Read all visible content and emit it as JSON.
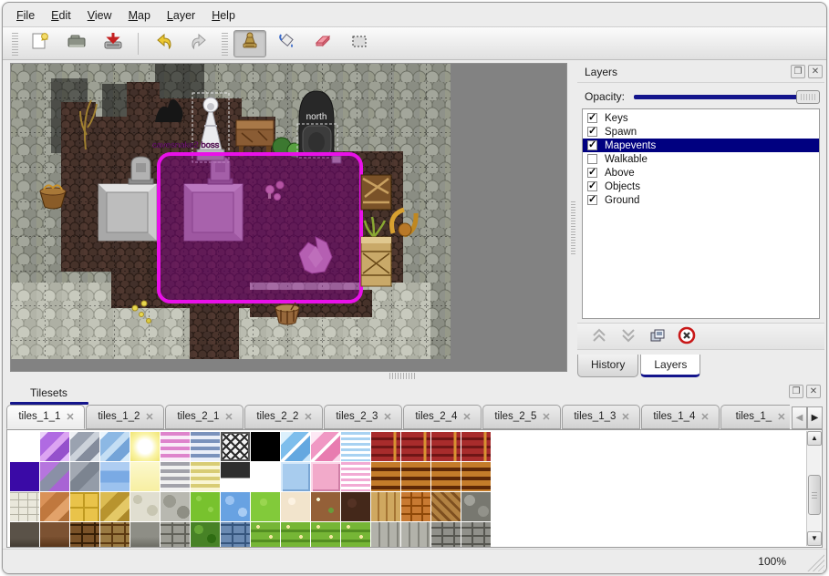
{
  "menu": {
    "items": [
      {
        "label": "File"
      },
      {
        "label": "Edit"
      },
      {
        "label": "View"
      },
      {
        "label": "Map"
      },
      {
        "label": "Layer"
      },
      {
        "label": "Help"
      }
    ]
  },
  "toolbar": {
    "items": [
      {
        "type": "grip"
      },
      {
        "type": "button",
        "icon": "new-file-icon",
        "name": "new-button",
        "active": false
      },
      {
        "type": "button",
        "icon": "open-icon",
        "name": "open-button",
        "active": false
      },
      {
        "type": "button",
        "icon": "save-icon",
        "name": "save-button",
        "active": false
      },
      {
        "type": "sep"
      },
      {
        "type": "button",
        "icon": "undo-icon",
        "name": "undo-button",
        "active": false
      },
      {
        "type": "button",
        "icon": "redo-icon",
        "name": "redo-button",
        "active": false
      },
      {
        "type": "grip"
      },
      {
        "type": "button",
        "icon": "stamp-tool-icon",
        "name": "stamp-tool-button",
        "active": true
      },
      {
        "type": "button",
        "icon": "fill-tool-icon",
        "name": "fill-tool-button",
        "active": false
      },
      {
        "type": "button",
        "icon": "eraser-tool-icon",
        "name": "eraser-tool-button",
        "active": false
      },
      {
        "type": "button",
        "icon": "select-tool-icon",
        "name": "select-tool-button",
        "active": false
      }
    ]
  },
  "map": {
    "event_labels": {
      "boss": "cavesnake2 boss",
      "north": "north"
    }
  },
  "layers_panel": {
    "title": "Layers",
    "opacity_label": "Opacity:",
    "opacity_value_pct": 100,
    "layers": [
      {
        "label": "Keys",
        "checked": true,
        "selected": false
      },
      {
        "label": "Spawn",
        "checked": true,
        "selected": false
      },
      {
        "label": "Mapevents",
        "checked": true,
        "selected": true
      },
      {
        "label": "Walkable",
        "checked": false,
        "selected": false
      },
      {
        "label": "Above",
        "checked": true,
        "selected": false
      },
      {
        "label": "Objects",
        "checked": true,
        "selected": false
      },
      {
        "label": "Ground",
        "checked": true,
        "selected": false
      }
    ],
    "action_buttons": [
      {
        "icon": "move-layer-up-icon",
        "name": "move-layer-up-button",
        "disabled": true
      },
      {
        "icon": "move-layer-down-icon",
        "name": "move-layer-down-button",
        "disabled": true
      },
      {
        "icon": "duplicate-layer-icon",
        "name": "duplicate-layer-button",
        "disabled": false
      },
      {
        "icon": "delete-layer-icon",
        "name": "delete-layer-button",
        "disabled": false
      }
    ],
    "dock_tabs": [
      {
        "label": "History",
        "active": false
      },
      {
        "label": "Layers",
        "active": true
      }
    ]
  },
  "tilesets_panel": {
    "title": "Tilesets",
    "tabs": [
      {
        "label": "tiles_1_1",
        "active": true
      },
      {
        "label": "tiles_1_2",
        "active": false
      },
      {
        "label": "tiles_2_1",
        "active": false
      },
      {
        "label": "tiles_2_2",
        "active": false
      },
      {
        "label": "tiles_2_3",
        "active": false
      },
      {
        "label": "tiles_2_4",
        "active": false
      },
      {
        "label": "tiles_2_5",
        "active": false
      },
      {
        "label": "tiles_1_3",
        "active": false
      },
      {
        "label": "tiles_1_4",
        "active": false
      },
      {
        "label": "tiles_1_",
        "active": false
      }
    ],
    "scroll_left_label": "◀",
    "scroll_right_label": "▶",
    "tile_rows": [
      [
        "empty",
        "crysPurple",
        "crysGray",
        "crysBlue",
        "glowYellow",
        "stripePink",
        "stripeBlue",
        "lattice",
        "black",
        "iceBlue",
        "icePink",
        "thinBlue",
        "redWall",
        "redWall",
        "redWall",
        "redWall"
      ],
      [
        "indigo",
        "crysPurple2",
        "crysGray2",
        "water",
        "paleYellow",
        "stripeGray",
        "stripeYellow",
        "signDark",
        "empty",
        "panelBlue",
        "panelPink",
        "thinPink",
        "brownWall",
        "brownWall",
        "brownWall",
        "brownWall"
      ],
      [
        "stonePath",
        "cobbleOrange",
        "tileYellow",
        "stonesYellow",
        "pebblesWhite",
        "stonesGray",
        "grass",
        "water2",
        "grass2",
        "sand",
        "dirtFlowers",
        "darkBrown",
        "planks",
        "brickOrange",
        "herringbone",
        "pebblesGray"
      ],
      [
        "stoneDark",
        "wallBrown2",
        "brickBrown",
        "brickTan",
        "stoneGray2",
        "brickGray",
        "hedge",
        "brickBlue",
        "grassRow",
        "grassRow",
        "grassRow",
        "grassRow",
        "plankGray",
        "plankGray",
        "brickGray2",
        "brickGray2"
      ]
    ]
  },
  "status_bar": {
    "zoom": "100%"
  },
  "colors": {
    "accent_navy": "#000080",
    "selection_magenta": "#ee22ee",
    "selection_fill": "rgba(130,0,140,0.45)",
    "window_bg": "#ececec",
    "map_backdrop": "#828282"
  }
}
